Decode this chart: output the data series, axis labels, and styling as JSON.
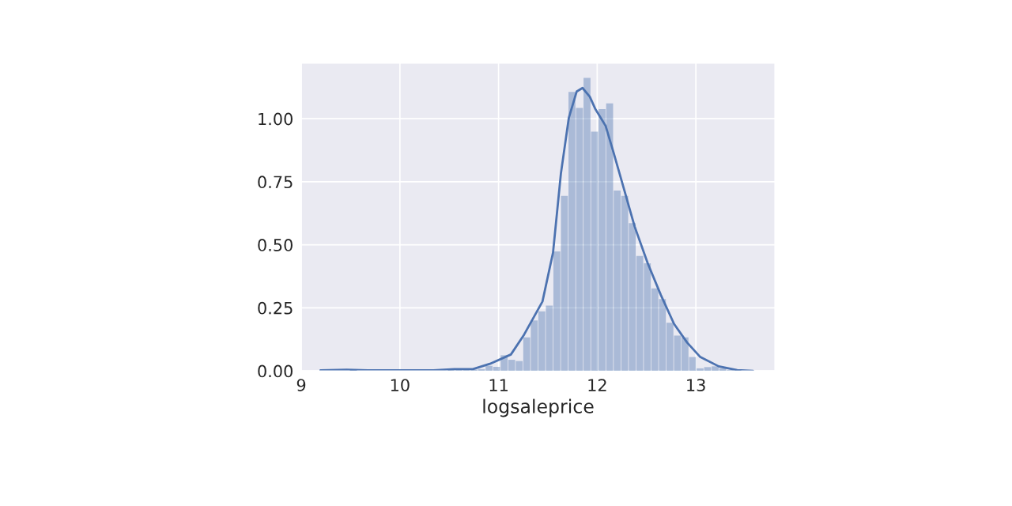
{
  "chart_data": {
    "type": "histogram",
    "xlabel": "logsaleprice",
    "color": "#4c72b0",
    "bins": [
      9.49,
      9.5664,
      9.6428,
      9.7192,
      9.7956,
      9.872,
      9.9484,
      10.0248,
      10.1012,
      10.1776,
      10.254,
      10.3304,
      10.4068,
      10.4832,
      10.5596,
      10.636,
      10.7124,
      10.7888,
      10.8652,
      10.9416,
      11.018,
      11.0944,
      11.1708,
      11.2472,
      11.3236,
      11.4,
      11.4764,
      11.5528,
      11.6292,
      11.7056,
      11.782,
      11.8584,
      11.9348,
      12.0112,
      12.0876,
      12.164,
      12.2404,
      12.3168,
      12.3932,
      12.4696,
      12.546,
      12.6224,
      12.6988,
      12.7752,
      12.8516,
      12.928,
      13.0044,
      13.0808,
      13.1572,
      13.2336,
      13.31,
      13.3864,
      13.4628,
      13.5392
    ],
    "values": [
      0.006,
      0,
      0,
      0,
      0,
      0,
      0,
      0,
      0,
      0,
      0,
      0,
      0,
      0.004,
      0.006,
      0.004,
      0.005,
      0.007,
      0.02,
      0.016,
      0.062,
      0.044,
      0.039,
      0.133,
      0.2,
      0.236,
      0.259,
      0.474,
      0.694,
      1.106,
      1.043,
      1.162,
      0.949,
      1.038,
      1.061,
      0.715,
      0.694,
      0.586,
      0.456,
      0.427,
      0.327,
      0.285,
      0.191,
      0.14,
      0.133,
      0.055,
      0.01,
      0.015,
      0.018,
      0.01,
      0.003,
      0.003,
      0
    ],
    "series": [
      {
        "type": "line",
        "color": "#4c72b0",
        "x": [
          9.195,
          9.46,
          9.675,
          10.34,
          10.553,
          10.74,
          10.912,
          11.125,
          11.259,
          11.445,
          11.552,
          11.632,
          11.712,
          11.792,
          11.851,
          11.925,
          11.979,
          12.085,
          12.165,
          12.272,
          12.379,
          12.512,
          12.645,
          12.779,
          12.912,
          13.045,
          13.232,
          13.419,
          13.579
        ],
        "values": [
          0.002,
          0.005,
          0.002,
          0.002,
          0.007,
          0.007,
          0.028,
          0.065,
          0.144,
          0.275,
          0.469,
          0.783,
          1.003,
          1.108,
          1.122,
          1.087,
          1.04,
          0.972,
          0.867,
          0.72,
          0.573,
          0.427,
          0.301,
          0.186,
          0.112,
          0.055,
          0.018,
          0.003,
          0
        ]
      }
    ],
    "xlim": [
      9,
      13.8
    ],
    "ylim": [
      0,
      1.22
    ],
    "xticks": [
      9,
      10,
      11,
      12,
      13
    ],
    "yticks": [
      {
        "value": 0,
        "label": "0.00"
      },
      {
        "value": 0.25,
        "label": "0.25"
      },
      {
        "value": 0.5,
        "label": "0.50"
      },
      {
        "value": 0.75,
        "label": "0.75"
      },
      {
        "value": 1.0,
        "label": "1.00"
      }
    ],
    "grid": true
  }
}
